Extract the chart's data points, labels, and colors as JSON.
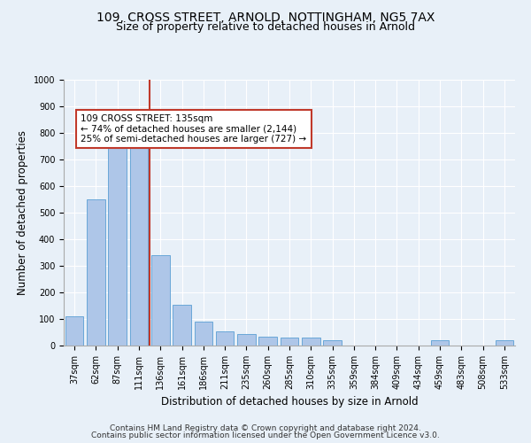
{
  "title_line1": "109, CROSS STREET, ARNOLD, NOTTINGHAM, NG5 7AX",
  "title_line2": "Size of property relative to detached houses in Arnold",
  "xlabel": "Distribution of detached houses by size in Arnold",
  "ylabel": "Number of detached properties",
  "categories": [
    "37sqm",
    "62sqm",
    "87sqm",
    "111sqm",
    "136sqm",
    "161sqm",
    "186sqm",
    "211sqm",
    "235sqm",
    "260sqm",
    "285sqm",
    "310sqm",
    "335sqm",
    "359sqm",
    "384sqm",
    "409sqm",
    "434sqm",
    "459sqm",
    "483sqm",
    "508sqm",
    "533sqm"
  ],
  "values": [
    110,
    550,
    780,
    760,
    340,
    155,
    90,
    55,
    45,
    35,
    30,
    30,
    20,
    0,
    0,
    0,
    0,
    20,
    0,
    0,
    20
  ],
  "bar_color": "#aec6e8",
  "bar_edge_color": "#5a9fd4",
  "vline_color": "#c0392b",
  "annotation_text": "109 CROSS STREET: 135sqm\n← 74% of detached houses are smaller (2,144)\n25% of semi-detached houses are larger (727) →",
  "annotation_box_color": "white",
  "annotation_box_edge": "#c0392b",
  "ylim": [
    0,
    1000
  ],
  "yticks": [
    0,
    100,
    200,
    300,
    400,
    500,
    600,
    700,
    800,
    900,
    1000
  ],
  "footer_line1": "Contains HM Land Registry data © Crown copyright and database right 2024.",
  "footer_line2": "Contains public sector information licensed under the Open Government Licence v3.0.",
  "bg_color": "#e8f0f8",
  "plot_bg_color": "#e8f0f8",
  "grid_color": "white",
  "title_fontsize": 10,
  "subtitle_fontsize": 9,
  "axis_label_fontsize": 8.5,
  "tick_fontsize": 7,
  "footer_fontsize": 6.5
}
